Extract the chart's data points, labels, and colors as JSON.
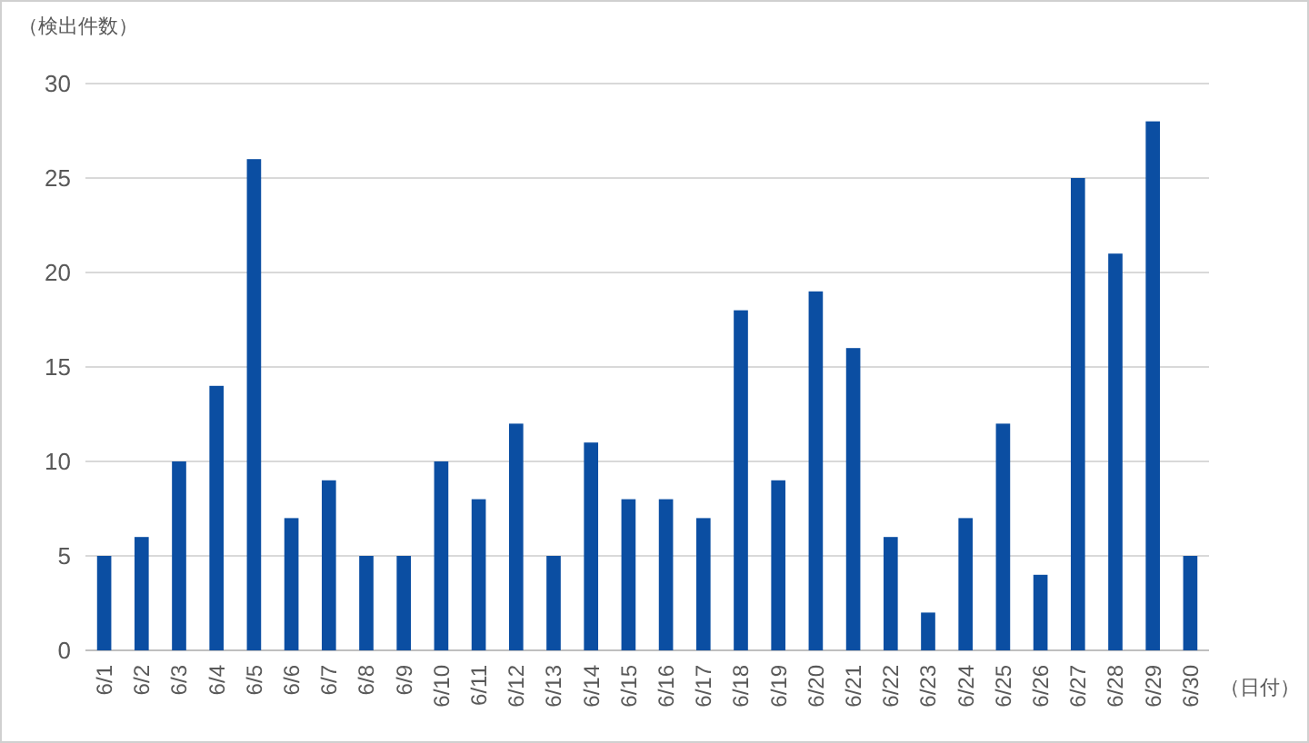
{
  "chart_data": {
    "type": "bar",
    "ylabel": "（検出件数）",
    "xlabel": "（日付）",
    "categories": [
      "6/1",
      "6/2",
      "6/3",
      "6/4",
      "6/5",
      "6/6",
      "6/7",
      "6/8",
      "6/9",
      "6/10",
      "6/11",
      "6/12",
      "6/13",
      "6/14",
      "6/15",
      "6/16",
      "6/17",
      "6/18",
      "6/19",
      "6/20",
      "6/21",
      "6/22",
      "6/23",
      "6/24",
      "6/25",
      "6/26",
      "6/27",
      "6/28",
      "6/29",
      "6/30"
    ],
    "values": [
      5,
      6,
      10,
      14,
      26,
      7,
      9,
      5,
      5,
      10,
      8,
      12,
      5,
      11,
      8,
      8,
      7,
      18,
      9,
      19,
      16,
      6,
      2,
      7,
      12,
      4,
      25,
      21,
      28,
      5
    ],
    "color": "#0b4ea2",
    "ylim": [
      0,
      30
    ],
    "yticks": [
      0,
      5,
      10,
      15,
      20,
      25,
      30
    ],
    "grid": "y"
  }
}
